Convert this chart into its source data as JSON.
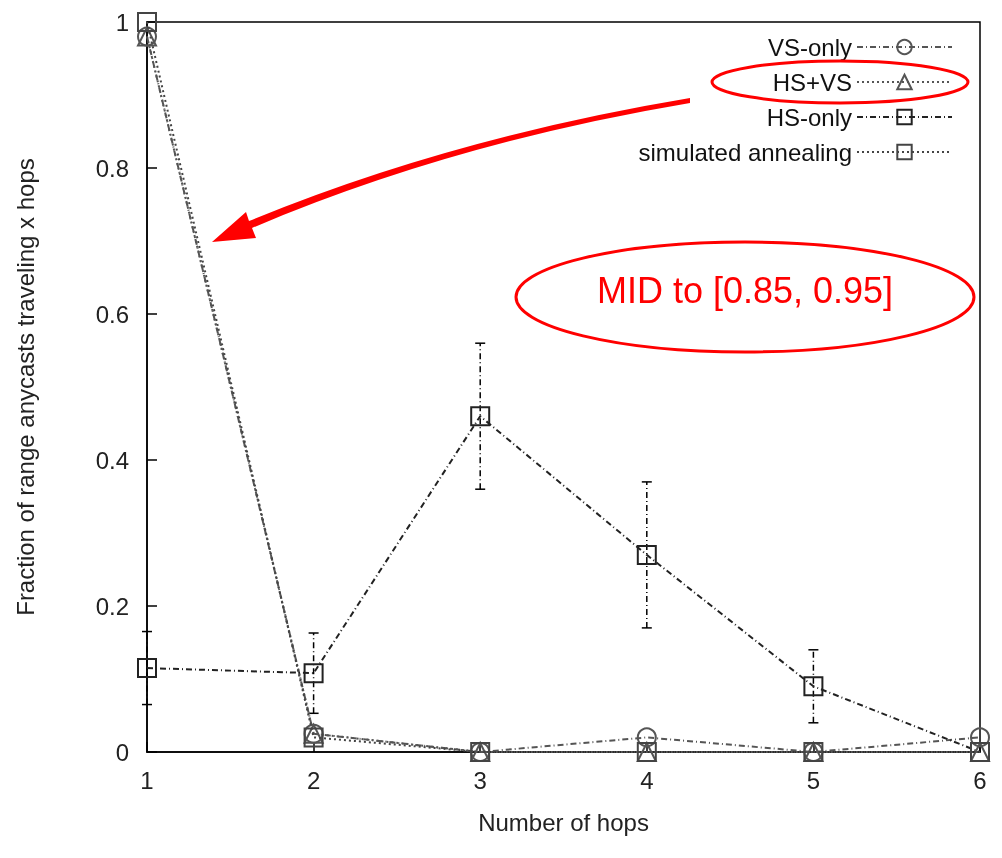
{
  "chart_data": {
    "type": "line",
    "xlabel": "Number of hops",
    "ylabel": "Fraction of range anycasts traveling x hops",
    "x": [
      1,
      2,
      3,
      4,
      5,
      6
    ],
    "xlim": [
      1,
      6
    ],
    "xticks": [
      1,
      2,
      3,
      4,
      5,
      6
    ],
    "ylim": [
      0,
      1
    ],
    "yticks": [
      0,
      0.2,
      0.4,
      0.6,
      0.8,
      1
    ],
    "grid": false,
    "legend": "top right",
    "series": [
      {
        "name": "VS-only",
        "color": "#555555",
        "marker": "circle",
        "line_style": "dashed",
        "values": [
          0.98,
          0.025,
          0,
          0.02,
          0,
          0.02
        ]
      },
      {
        "name": "HS+VS",
        "color": "#555555",
        "marker": "triangle",
        "line_style": "dotted",
        "values": [
          0.98,
          0.025,
          0,
          0,
          0,
          0
        ]
      },
      {
        "name": "HS-only",
        "color": "#222222",
        "marker": "square",
        "line_style": "dashed",
        "values": [
          0.115,
          0.108,
          0.46,
          0.27,
          0.09,
          0
        ],
        "errors": [
          0.05,
          0.055,
          0.1,
          0.1,
          0.05,
          null
        ]
      },
      {
        "name": "simulated annealing",
        "color": "#444444",
        "marker": "square",
        "line_style": "dotted",
        "values": [
          1,
          0.02,
          0,
          0,
          0,
          0
        ]
      }
    ],
    "annotations": [
      "MID to [0.85, 0.95]"
    ]
  }
}
